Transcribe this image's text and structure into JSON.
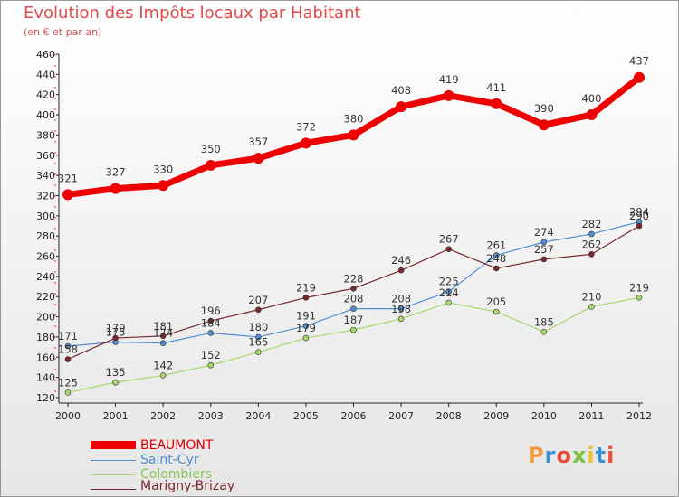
{
  "header": {
    "title": "Evolution des Impôts locaux par Habitant",
    "subtitle": "(en € et par an)"
  },
  "logo": {
    "text": "Proxiti",
    "colors": [
      "#f29a3a",
      "#3b8fd4",
      "#e8503c",
      "#7cc242",
      "#f0c030",
      "#3b8fd4",
      "#e8503c"
    ]
  },
  "chart_data": {
    "type": "line",
    "title": "Evolution des Impôts locaux par Habitant",
    "subtitle": "(en € et par an)",
    "xlabel": "",
    "ylabel": "",
    "x": [
      2000,
      2001,
      2002,
      2003,
      2004,
      2005,
      2006,
      2007,
      2008,
      2009,
      2010,
      2011,
      2012
    ],
    "ylim": [
      120,
      460
    ],
    "yticks": [
      120,
      140,
      160,
      180,
      200,
      220,
      240,
      260,
      280,
      300,
      320,
      340,
      360,
      380,
      400,
      420,
      440,
      460
    ],
    "grid": false,
    "legend_position": "bottom-left",
    "series": [
      {
        "name": "BEAUMONT",
        "color": "#ee0000",
        "width": 7,
        "marker": 6,
        "values": [
          321,
          327,
          330,
          350,
          357,
          372,
          380,
          408,
          419,
          411,
          390,
          400,
          437
        ]
      },
      {
        "name": "Saint-Cyr",
        "color": "#4f8fd0",
        "width": 1.2,
        "marker": 3,
        "values": [
          171,
          175,
          174,
          184,
          180,
          191,
          208,
          208,
          225,
          261,
          274,
          282,
          294
        ]
      },
      {
        "name": "Colombiers",
        "color": "#a6d86e",
        "width": 1.2,
        "marker": 3,
        "values": [
          125,
          135,
          142,
          152,
          165,
          179,
          187,
          198,
          214,
          205,
          185,
          210,
          219
        ]
      },
      {
        "name": "Marigny-Brizay",
        "color": "#7a2830",
        "width": 1.2,
        "marker": 3,
        "values": [
          158,
          179,
          181,
          196,
          207,
          219,
          228,
          246,
          267,
          248,
          257,
          262,
          290
        ]
      }
    ]
  }
}
